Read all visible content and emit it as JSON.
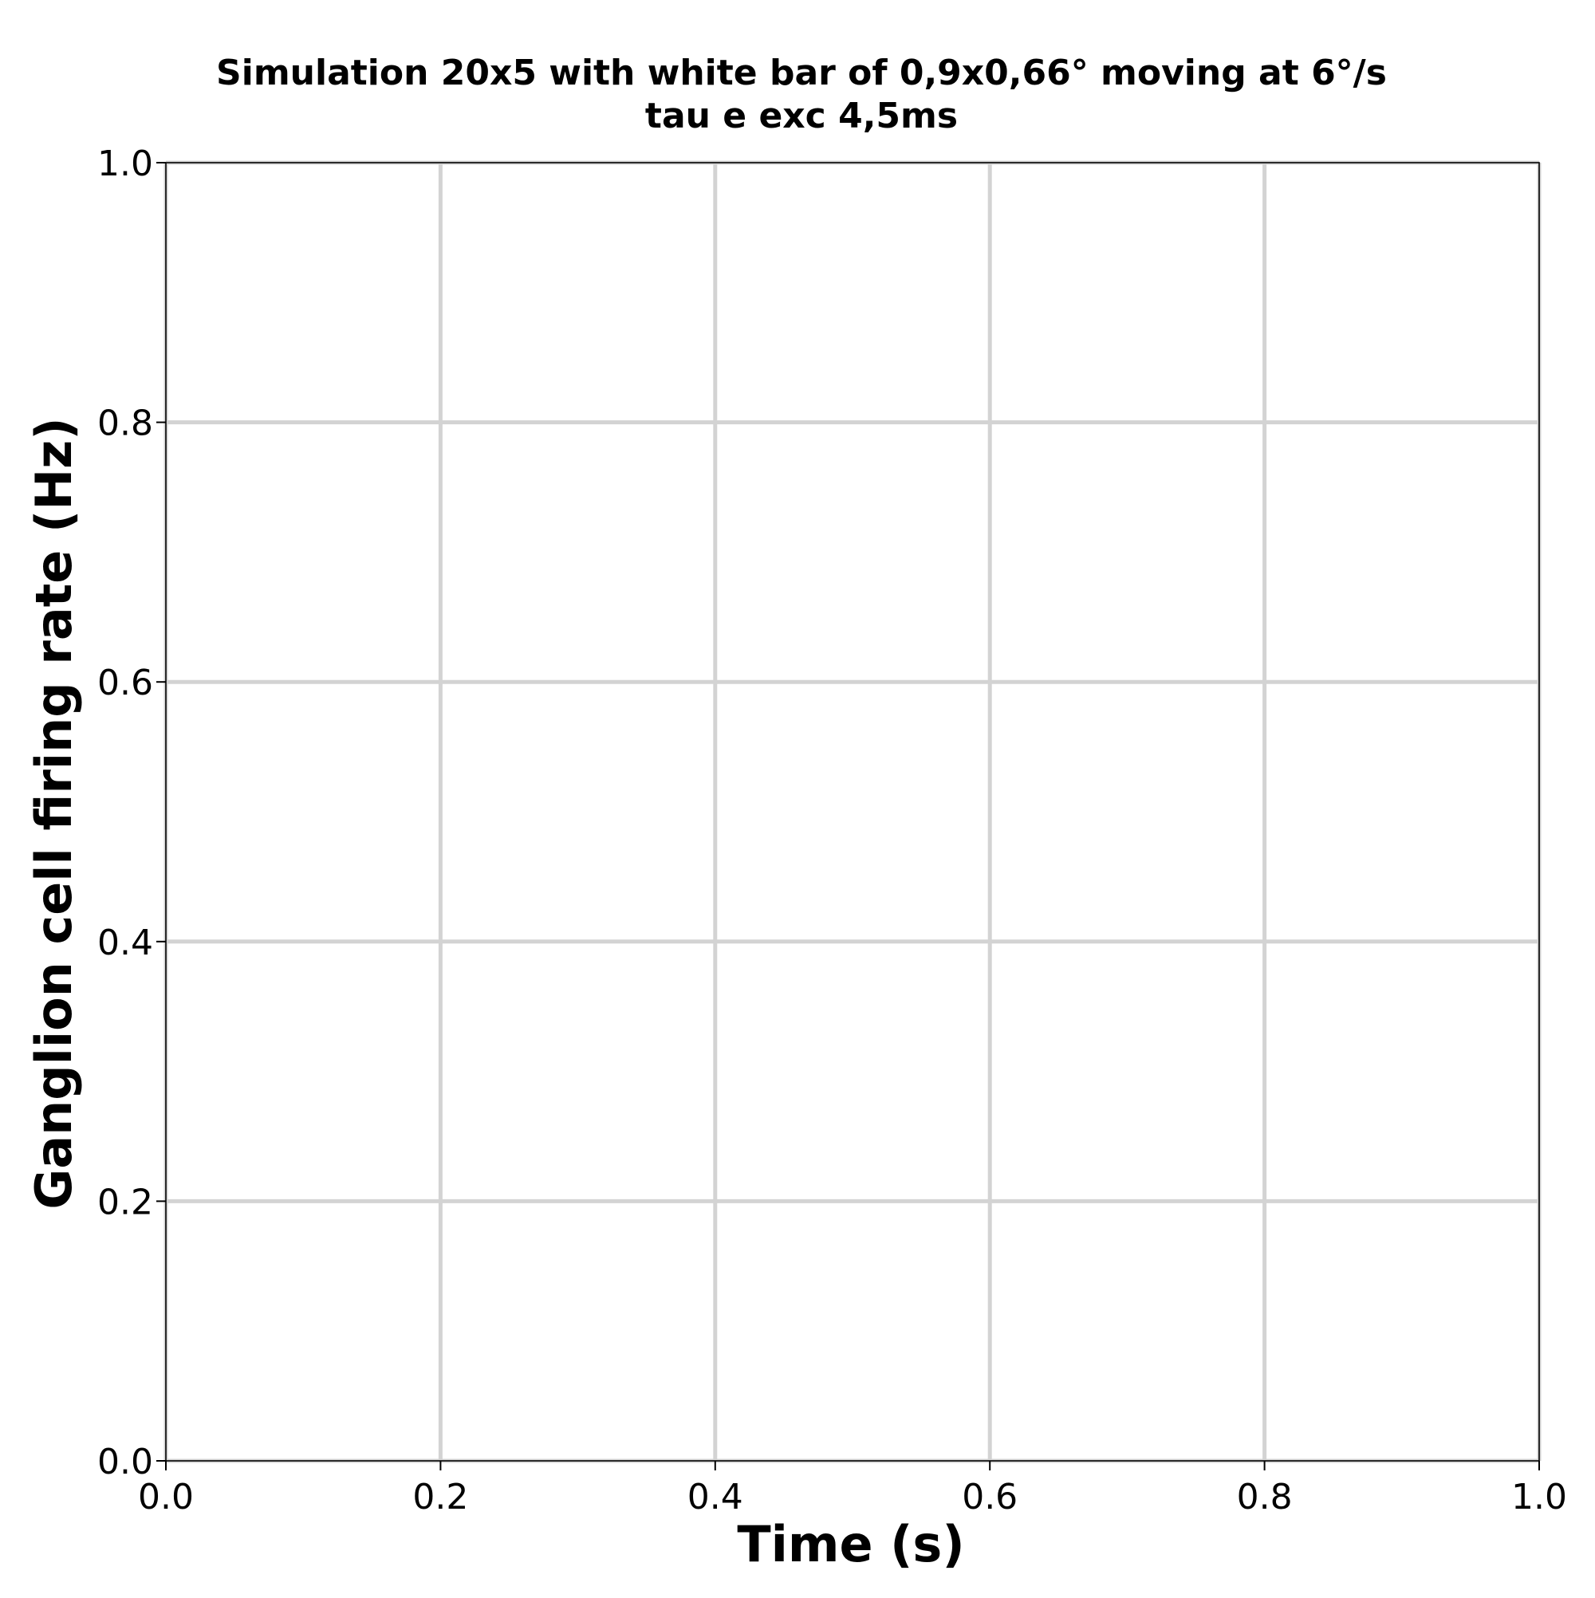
{
  "chart_data": {
    "type": "line",
    "title": "Simulation 20x5 with white bar of 0,9x0,66° moving at 6°/s",
    "subtitle": "tau e exc 4,5ms",
    "xlabel": "Time (s)",
    "ylabel": "Ganglion cell firing rate (Hz)",
    "xlim": [
      0.0,
      1.0
    ],
    "ylim": [
      0.0,
      1.0
    ],
    "xticks": [
      "0.0",
      "0.2",
      "0.4",
      "0.6",
      "0.8",
      "1.0"
    ],
    "yticks": [
      "0.0",
      "0.2",
      "0.4",
      "0.6",
      "0.8",
      "1.0"
    ],
    "grid": true,
    "series": [],
    "colors": {
      "grid": "#d3d3d3",
      "axes": "#000000",
      "background": "#ffffff"
    }
  }
}
